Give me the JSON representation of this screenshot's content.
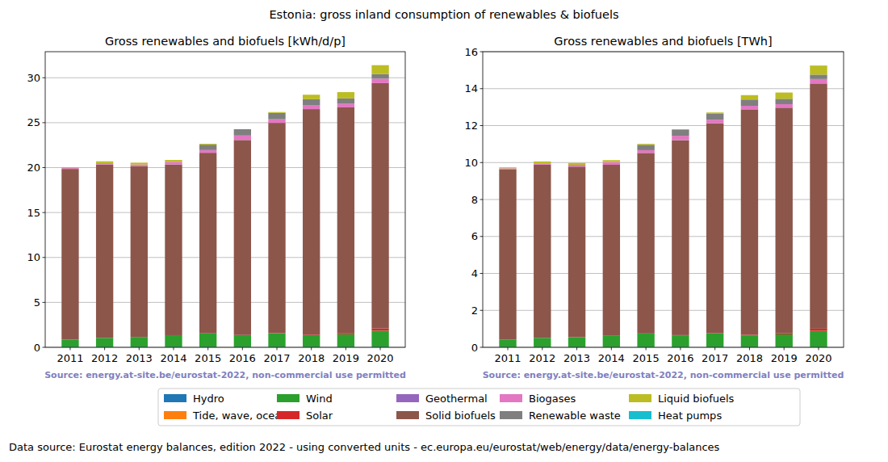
{
  "figure": {
    "title": "Estonia: gross inland consumption of renewables & biofuels",
    "footer": "Data source: Eurostat energy balances, edition 2022 - using converted units - ec.europa.eu/eurostat/web/energy/data/energy-balances"
  },
  "chart_data": [
    {
      "type": "bar",
      "stacked": true,
      "grid": "y",
      "legend": "bottom",
      "title": "Gross renewables and biofuels [kWh/d/p]",
      "annotations": [
        "Source: energy.at-site.be/eurostat-2022, non-commercial use permitted"
      ],
      "categories": [
        "2011",
        "2012",
        "2013",
        "2014",
        "2015",
        "2016",
        "2017",
        "2018",
        "2019",
        "2020"
      ],
      "ylim": [
        0,
        32.9
      ],
      "yticks": [
        0,
        5,
        10,
        15,
        20,
        25,
        30
      ],
      "series": [
        {
          "name": "Hydro",
          "color": "#1f77b4",
          "values": [
            0.05,
            0.05,
            0.05,
            0.05,
            0.05,
            0.05,
            0.05,
            0.05,
            0.05,
            0.05
          ]
        },
        {
          "name": "Tide, wave, ocean",
          "color": "#ff7f0e",
          "values": [
            0,
            0,
            0,
            0,
            0,
            0,
            0,
            0,
            0,
            0
          ]
        },
        {
          "name": "Wind",
          "color": "#2ca02c",
          "values": [
            0.8,
            1.0,
            1.1,
            1.3,
            1.5,
            1.3,
            1.5,
            1.3,
            1.4,
            1.8
          ]
        },
        {
          "name": "Solar",
          "color": "#d62728",
          "values": [
            0,
            0,
            0,
            0,
            0,
            0.02,
            0.03,
            0.06,
            0.15,
            0.25
          ]
        },
        {
          "name": "Geothermal",
          "color": "#9467bd",
          "values": [
            0,
            0,
            0,
            0,
            0,
            0,
            0,
            0,
            0,
            0
          ]
        },
        {
          "name": "Solid biofuels",
          "color": "#8c564b",
          "values": [
            19.0,
            19.3,
            19.0,
            19.0,
            20.1,
            21.7,
            23.4,
            25.1,
            25.1,
            27.3
          ]
        },
        {
          "name": "Biogases",
          "color": "#e377c2",
          "values": [
            0.1,
            0.15,
            0.2,
            0.3,
            0.3,
            0.5,
            0.4,
            0.4,
            0.4,
            0.5
          ]
        },
        {
          "name": "Renewable waste",
          "color": "#7f7f7f",
          "values": [
            0,
            0,
            0,
            0,
            0.6,
            0.7,
            0.7,
            0.7,
            0.6,
            0.5
          ]
        },
        {
          "name": "Liquid biofuels",
          "color": "#bcbd22",
          "values": [
            0.1,
            0.2,
            0.2,
            0.2,
            0.1,
            0,
            0.1,
            0.5,
            0.7,
            1.0
          ]
        },
        {
          "name": "Heat pumps",
          "color": "#17becf",
          "values": [
            0,
            0,
            0,
            0,
            0,
            0,
            0,
            0,
            0,
            0
          ]
        }
      ]
    },
    {
      "type": "bar",
      "stacked": true,
      "grid": "y",
      "title": "Gross renewables and biofuels [TWh]",
      "annotations": [
        "Source: energy.at-site.be/eurostat-2022, non-commercial use permitted"
      ],
      "categories": [
        "2011",
        "2012",
        "2013",
        "2014",
        "2015",
        "2016",
        "2017",
        "2018",
        "2019",
        "2020"
      ],
      "ylim": [
        0,
        16
      ],
      "yticks": [
        0,
        2,
        4,
        6,
        8,
        10,
        12,
        14,
        16
      ],
      "series": [
        {
          "name": "Hydro",
          "color": "#1f77b4",
          "values": [
            0.02,
            0.02,
            0.02,
            0.02,
            0.02,
            0.02,
            0.02,
            0.02,
            0.02,
            0.02
          ]
        },
        {
          "name": "Tide, wave, ocean",
          "color": "#ff7f0e",
          "values": [
            0,
            0,
            0,
            0,
            0,
            0,
            0,
            0,
            0,
            0
          ]
        },
        {
          "name": "Wind",
          "color": "#2ca02c",
          "values": [
            0.39,
            0.49,
            0.53,
            0.63,
            0.73,
            0.63,
            0.73,
            0.63,
            0.68,
            0.87
          ]
        },
        {
          "name": "Solar",
          "color": "#d62728",
          "values": [
            0,
            0,
            0,
            0,
            0,
            0.01,
            0.01,
            0.03,
            0.07,
            0.12
          ]
        },
        {
          "name": "Geothermal",
          "color": "#9467bd",
          "values": [
            0,
            0,
            0,
            0,
            0,
            0,
            0,
            0,
            0,
            0
          ]
        },
        {
          "name": "Solid biofuels",
          "color": "#8c564b",
          "values": [
            9.23,
            9.38,
            9.23,
            9.23,
            9.77,
            10.55,
            11.37,
            12.2,
            12.2,
            13.27
          ]
        },
        {
          "name": "Biogases",
          "color": "#e377c2",
          "values": [
            0.05,
            0.07,
            0.1,
            0.15,
            0.15,
            0.24,
            0.19,
            0.19,
            0.19,
            0.24
          ]
        },
        {
          "name": "Renewable waste",
          "color": "#7f7f7f",
          "values": [
            0,
            0,
            0,
            0,
            0.29,
            0.34,
            0.34,
            0.34,
            0.29,
            0.24
          ]
        },
        {
          "name": "Liquid biofuels",
          "color": "#bcbd22",
          "values": [
            0.05,
            0.1,
            0.1,
            0.1,
            0.05,
            0,
            0.05,
            0.24,
            0.34,
            0.49
          ]
        },
        {
          "name": "Heat pumps",
          "color": "#17becf",
          "values": [
            0,
            0,
            0,
            0,
            0,
            0,
            0,
            0,
            0,
            0
          ]
        }
      ]
    }
  ]
}
